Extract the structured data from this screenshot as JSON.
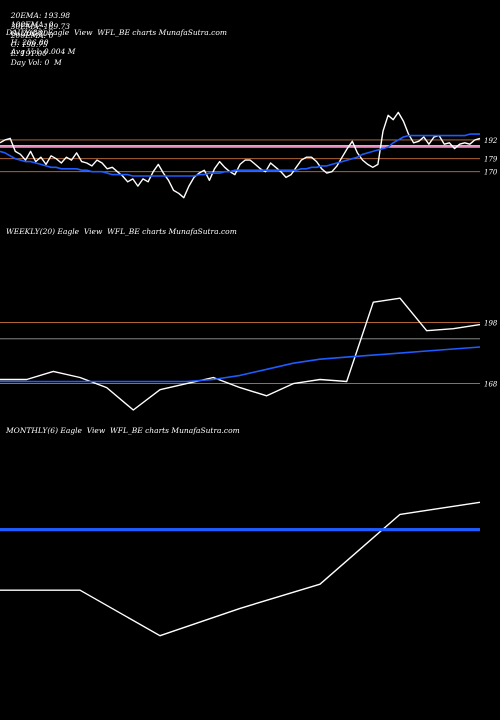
{
  "header": {
    "row1": [
      "20EMA: 193.98",
      "100EMA: 0",
      "O: 206.80",
      "H: 206.80",
      "Avg Vol: 0.004 M"
    ],
    "row2": [
      "30EMA: 189.73",
      "200EMA: 0",
      "C: 198.75",
      "L: 191.00",
      "Day Vol: 0  M"
    ]
  },
  "panels": {
    "daily_title": "DAILY(88) Eagle  View  WFL_BE charts MunafaSutra.com",
    "weekly_title": "WEEKLY(20) Eagle  View  WFL_BE charts MunafaSutra.com",
    "monthly_title": "MONTHLY(6) Eagle  View  WFL_BE charts MunafaSutra.com"
  },
  "colors": {
    "background": "#000000",
    "price": "#ffffff",
    "ema": "#1e5cff",
    "level_orange": "#c8743a",
    "level_pink": "#ff9ad0",
    "grid_grey": "#9a9a9a"
  },
  "chart_data": [
    {
      "type": "line",
      "panel": "daily",
      "y_tick_labels": [
        "192",
        "179",
        "170"
      ],
      "y_ticks": [
        192,
        179,
        170
      ],
      "horizontal_levels": [
        {
          "value": 192,
          "color": "orange"
        },
        {
          "value": 188,
          "color": "pink"
        },
        {
          "value": 187,
          "color": "pink"
        },
        {
          "value": 179,
          "color": "orange"
        },
        {
          "value": 170,
          "color": "orange"
        }
      ],
      "ylim": [
        140,
        230
      ],
      "series": [
        {
          "values": [
            190,
            192,
            193,
            184,
            182,
            178,
            184,
            177,
            180,
            175,
            181,
            179,
            176,
            180,
            178,
            183,
            177,
            176,
            174,
            178,
            176,
            172,
            173,
            170,
            167,
            163,
            165,
            160,
            165,
            163,
            170,
            175,
            169,
            164,
            157,
            155,
            152,
            160,
            166,
            169,
            171,
            164,
            172,
            177,
            173,
            170,
            168,
            175,
            178,
            178,
            175,
            172,
            170,
            176,
            173,
            170,
            166,
            168,
            173,
            178,
            180,
            180,
            177,
            172,
            169,
            170,
            174,
            180,
            186,
            191,
            183,
            178,
            175,
            173,
            175,
            198,
            209,
            206,
            211,
            205,
            196,
            190,
            191,
            194,
            189,
            194,
            195,
            189,
            190,
            186,
            189,
            190,
            189,
            192,
            193
          ]
        },
        {
          "values": [
            184,
            183,
            181,
            179,
            178,
            177,
            177,
            176,
            175,
            174,
            173,
            173,
            172,
            172,
            172,
            172,
            171,
            171,
            170,
            170,
            170,
            169,
            168,
            168,
            168,
            168,
            167,
            167,
            167,
            167,
            167,
            167,
            167,
            167,
            167,
            167,
            167,
            167,
            167,
            168,
            168,
            169,
            169,
            169,
            170,
            170,
            171,
            171,
            171,
            171,
            171,
            171,
            171,
            171,
            171,
            171,
            171,
            171,
            171,
            172,
            172,
            173,
            173,
            174,
            174,
            175,
            176,
            177,
            178,
            179,
            180,
            182,
            183,
            184,
            185,
            186,
            187,
            190,
            192,
            194,
            195,
            195,
            195,
            195,
            195,
            195,
            195,
            195,
            195,
            195,
            195,
            195,
            196,
            196,
            196
          ]
        }
      ]
    },
    {
      "type": "line",
      "panel": "weekly",
      "y_tick_labels": [
        "198",
        "168"
      ],
      "y_ticks": [
        198,
        168
      ],
      "horizontal_levels": [
        {
          "value": 198,
          "color": "orange"
        },
        {
          "value": 190,
          "color": "grey"
        },
        {
          "value": 168,
          "color": "orange"
        }
      ],
      "ylim": [
        155,
        215
      ],
      "series": [
        {
          "values": [
            170,
            170,
            174,
            171,
            166,
            155,
            165,
            168,
            171,
            166,
            162,
            168,
            170,
            169,
            208,
            210,
            194,
            195,
            197
          ]
        },
        {
          "values": [
            169,
            169,
            169,
            169,
            169,
            169,
            169,
            169,
            170,
            172,
            175,
            178,
            180,
            181,
            182,
            183,
            184,
            185,
            186
          ]
        }
      ]
    },
    {
      "type": "line",
      "panel": "monthly",
      "horizontal_levels": [
        {
          "value": 198,
          "color": "blue"
        }
      ],
      "ylim": [
        155,
        215
      ],
      "series": [
        {
          "values": [
            178,
            178,
            163,
            172,
            180,
            203,
            207
          ]
        },
        {
          "values": [
            198,
            198,
            198,
            198,
            198,
            198,
            198
          ]
        }
      ]
    }
  ]
}
